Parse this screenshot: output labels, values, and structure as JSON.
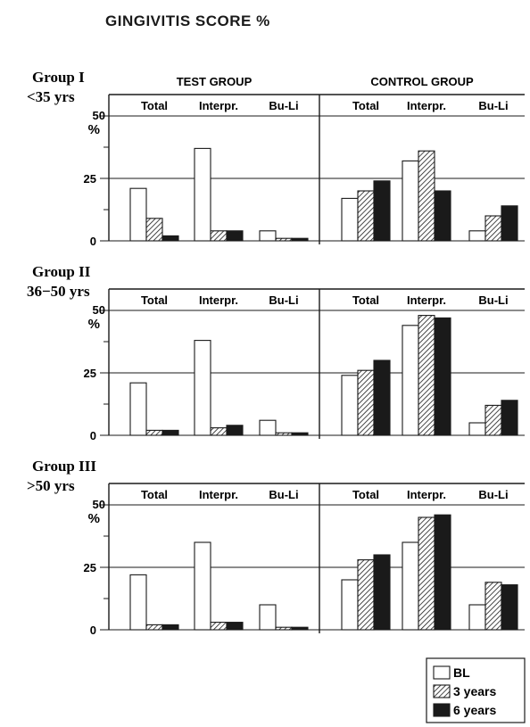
{
  "title": "GINGIVITIS SCORE %",
  "column_headers": [
    "TEST GROUP",
    "CONTROL GROUP"
  ],
  "subcategories": [
    "Total",
    "Interpr.",
    "Bu-Li"
  ],
  "groups": [
    {
      "name": "Group I",
      "age": "<35 yrs"
    },
    {
      "name": "Group II",
      "age": "36−50 yrs"
    },
    {
      "name": "Group III",
      "age": ">50 yrs"
    }
  ],
  "axis": {
    "ticks": [
      "0",
      "25",
      "50"
    ],
    "unit": "%"
  },
  "legend": [
    {
      "label": "BL",
      "pattern": "open"
    },
    {
      "label": "3 years",
      "pattern": "hatched"
    },
    {
      "label": "6 years",
      "pattern": "solid"
    }
  ],
  "chart_data": {
    "type": "bar",
    "title": "GINGIVITIS SCORE %",
    "ylabel": "%",
    "ylim": [
      0,
      50
    ],
    "yticks": [
      0,
      25,
      50
    ],
    "categories": [
      "Total",
      "Interpr.",
      "Bu-Li"
    ],
    "series_names": [
      "BL",
      "3 years",
      "6 years"
    ],
    "panels": [
      {
        "group": "Group I",
        "age": "<35 yrs",
        "arm": "TEST GROUP",
        "values": {
          "BL": [
            21,
            37,
            4
          ],
          "3 years": [
            9,
            4,
            1
          ],
          "6 years": [
            2,
            4,
            1
          ]
        }
      },
      {
        "group": "Group I",
        "age": "<35 yrs",
        "arm": "CONTROL GROUP",
        "values": {
          "BL": [
            17,
            32,
            4
          ],
          "3 years": [
            20,
            36,
            10
          ],
          "6 years": [
            24,
            20,
            14
          ]
        }
      },
      {
        "group": "Group II",
        "age": "36−50 yrs",
        "arm": "TEST GROUP",
        "values": {
          "BL": [
            21,
            38,
            6
          ],
          "3 years": [
            2,
            3,
            1
          ],
          "6 years": [
            2,
            4,
            1
          ]
        }
      },
      {
        "group": "Group II",
        "age": "36−50 yrs",
        "arm": "CONTROL GROUP",
        "values": {
          "BL": [
            24,
            44,
            5
          ],
          "3 years": [
            26,
            48,
            12
          ],
          "6 years": [
            30,
            47,
            14
          ]
        }
      },
      {
        "group": "Group III",
        "age": ">50 yrs",
        "arm": "TEST GROUP",
        "values": {
          "BL": [
            22,
            35,
            10
          ],
          "3 years": [
            2,
            3,
            1
          ],
          "6 years": [
            2,
            3,
            1
          ]
        }
      },
      {
        "group": "Group III",
        "age": ">50 yrs",
        "arm": "CONTROL GROUP",
        "values": {
          "BL": [
            20,
            35,
            10
          ],
          "3 years": [
            28,
            45,
            19
          ],
          "6 years": [
            30,
            46,
            18
          ]
        }
      }
    ]
  }
}
